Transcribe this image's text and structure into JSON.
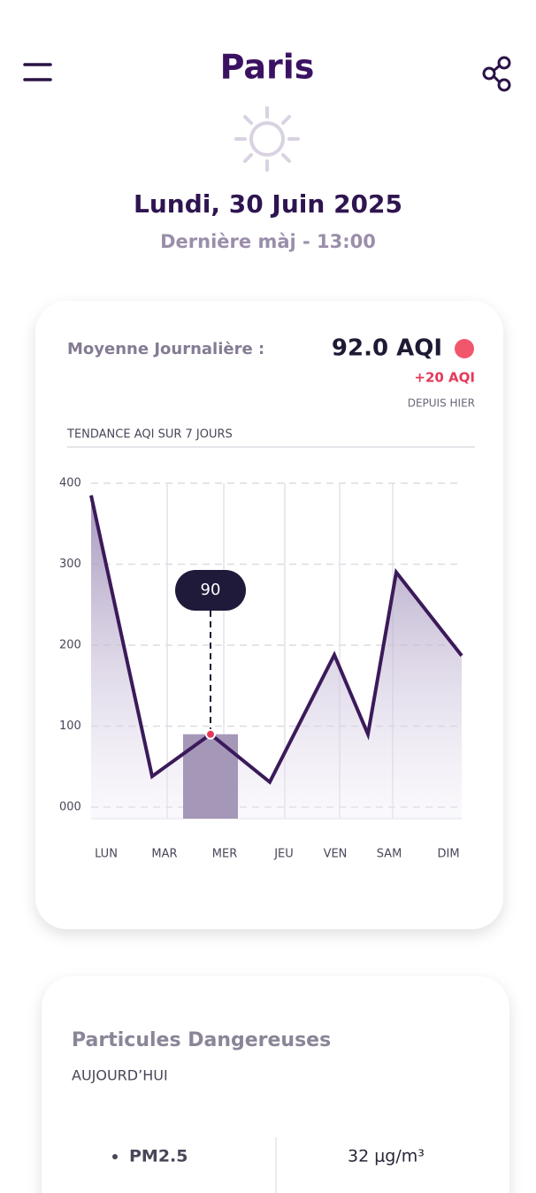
{
  "header": {
    "title": "Paris",
    "date": "Lundi, 30 Juin 2025",
    "updated": "Dernière màj - 13:00"
  },
  "summary": {
    "label": "Moyenne Journalière :",
    "value": "92.0 AQI",
    "change": "+20 AQI",
    "change_note": "DEPUIS HIER"
  },
  "chart_data": {
    "type": "area",
    "title": "TENDANCE AQI SUR 7 JOURS",
    "categories": [
      "LUN",
      "MAR",
      "MER",
      "JEU",
      "VEN",
      null,
      "SAM",
      "DIM"
    ],
    "values": [
      385,
      38,
      90,
      31,
      188,
      90,
      290,
      187
    ],
    "color": "#3b1a5a",
    "ylim": [
      0,
      400
    ],
    "yticks": [
      {
        "value": 0,
        "label": "000"
      },
      100,
      200,
      300,
      400
    ],
    "grid": true
  },
  "particles": {
    "title": "Particules Dangereuses",
    "subtitle": "AUJOURD’HUI",
    "items": [
      {
        "name": "PM2.5",
        "value": "32 μg/m³"
      }
    ]
  }
}
